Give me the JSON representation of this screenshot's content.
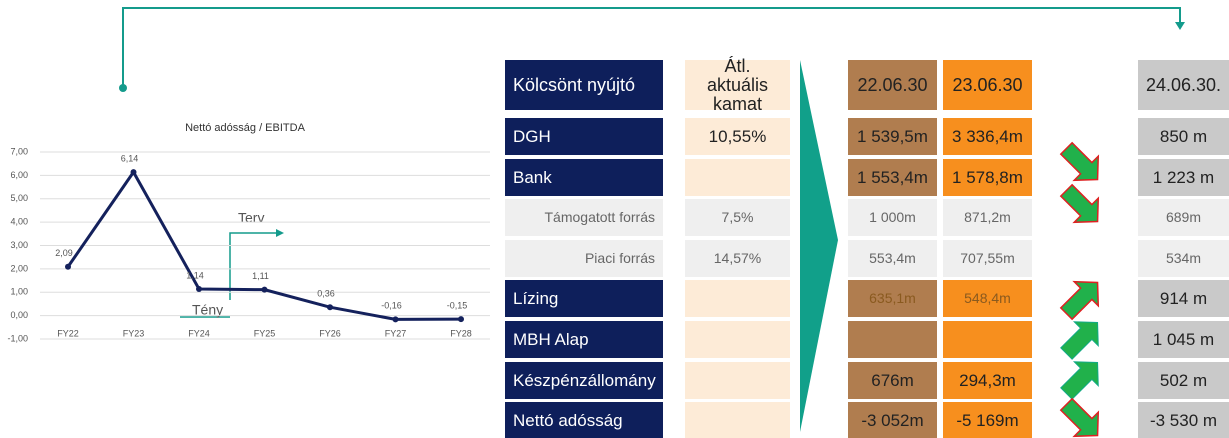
{
  "chart_data": {
    "type": "line",
    "title": "Nettó adósság / EBITDA",
    "categories": [
      "FY22",
      "FY23",
      "FY24",
      "FY25",
      "FY26",
      "FY27",
      "FY28"
    ],
    "series": [
      {
        "name": "Nettó adósság / EBITDA",
        "color": "#14215c",
        "values": [
          2.09,
          6.14,
          1.14,
          1.11,
          0.36,
          -0.16,
          -0.15
        ],
        "value_labels": [
          "2,09",
          "6,14",
          "1,14",
          "1,11",
          "0,36",
          "-0,16",
          "-0,15"
        ]
      }
    ],
    "ylim": [
      -1,
      7
    ],
    "yticks": [
      {
        "value": 7,
        "label": "7,00"
      },
      {
        "value": 6,
        "label": "6,00"
      },
      {
        "value": 5,
        "label": "5,00"
      },
      {
        "value": 4,
        "label": "4,00"
      },
      {
        "value": 3,
        "label": "3,00"
      },
      {
        "value": 2,
        "label": "2,00"
      },
      {
        "value": 1,
        "label": "1,00"
      },
      {
        "value": 0,
        "label": "0,00"
      },
      {
        "value": -1,
        "label": "-1,00"
      }
    ],
    "grid": true,
    "annotations": [
      "Terv",
      "Tény"
    ]
  },
  "table": {
    "header": [
      "Kölcsönt nyújtó",
      "Átl. aktuális kamat",
      "22.06.30",
      "23.06.30",
      "24.06.30."
    ],
    "rows": [
      [
        "DGH",
        "10,55%",
        "1 539,5m",
        "3 336,4m",
        "850 m"
      ],
      [
        "Bank",
        null,
        "1 553,4m",
        "1 578,8m",
        "1 223 m"
      ],
      [
        "Támogatott forrás",
        "7,5%",
        "1 000m",
        "871,2m",
        "689m"
      ],
      [
        "Piaci forrás",
        "14,57%",
        "553,4m",
        "707,55m",
        "534m"
      ],
      [
        "Lízing",
        null,
        "635,1m",
        "548,4m",
        "914 m"
      ],
      [
        "MBH Alap",
        null,
        null,
        null,
        "1 045 m"
      ],
      [
        "Készpénzállomány",
        null,
        "676m",
        "294,3m",
        "502 m"
      ],
      [
        "Nettó adósság",
        null,
        "-3 052m",
        "-5 169m",
        "-3 530 m"
      ]
    ]
  }
}
